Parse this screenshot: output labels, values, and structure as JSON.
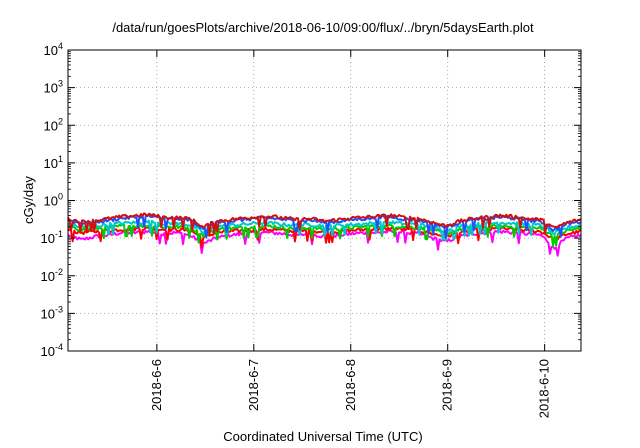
{
  "chart_data": {
    "type": "line",
    "title": "/data/run/goesPlots/archive/2018-06-10/09:00/flux/../bryn/5daysEarth.plot",
    "xlabel": "Coordinated Universal Time (UTC)",
    "ylabel": "cGy/day",
    "yscale": "log",
    "ylim": [
      0.0001,
      10000
    ],
    "xlim": [
      "2018-06-05 02:00",
      "2018-06-10 09:00"
    ],
    "y_ticks": [
      {
        "base": "10",
        "exp": "4"
      },
      {
        "base": "10",
        "exp": "3"
      },
      {
        "base": "10",
        "exp": "2"
      },
      {
        "base": "10",
        "exp": "1"
      },
      {
        "base": "10",
        "exp": "0"
      },
      {
        "base": "10",
        "exp": "-1"
      },
      {
        "base": "10",
        "exp": "-2"
      },
      {
        "base": "10",
        "exp": "-3"
      },
      {
        "base": "10",
        "exp": "-4"
      }
    ],
    "x_ticks": [
      "2018-6-6",
      "2018-6-7",
      "2018-6-8",
      "2018-6-9",
      "2018-6-10"
    ],
    "grid": true,
    "legend": "none",
    "series": [
      {
        "color": "#ff00ff",
        "level": 0.13,
        "values": [
          0.12,
          0.09,
          0.11,
          0.12,
          0.14,
          0.14,
          0.15,
          0.13,
          0.14,
          0.12,
          0.07,
          0.1,
          0.12,
          0.13,
          0.14,
          0.14,
          0.13,
          0.12,
          0.13,
          0.11,
          0.12,
          0.13,
          0.14,
          0.14,
          0.15,
          0.14,
          0.13,
          0.1,
          0.08,
          0.11,
          0.13,
          0.14,
          0.15,
          0.14,
          0.13,
          0.12,
          0.05,
          0.1,
          0.12
        ]
      },
      {
        "color": "#ff0000",
        "level": 0.16,
        "values": [
          0.16,
          0.14,
          0.15,
          0.16,
          0.17,
          0.18,
          0.18,
          0.17,
          0.17,
          0.16,
          0.1,
          0.14,
          0.15,
          0.16,
          0.17,
          0.17,
          0.16,
          0.15,
          0.16,
          0.14,
          0.15,
          0.16,
          0.17,
          0.17,
          0.18,
          0.17,
          0.16,
          0.13,
          0.11,
          0.14,
          0.16,
          0.17,
          0.18,
          0.17,
          0.16,
          0.15,
          0.09,
          0.13,
          0.15
        ]
      },
      {
        "color": "#00cc00",
        "level": 0.19,
        "values": [
          0.19,
          0.17,
          0.18,
          0.19,
          0.21,
          0.21,
          0.22,
          0.2,
          0.2,
          0.19,
          0.12,
          0.17,
          0.18,
          0.19,
          0.2,
          0.21,
          0.19,
          0.18,
          0.19,
          0.17,
          0.18,
          0.19,
          0.2,
          0.21,
          0.21,
          0.2,
          0.19,
          0.16,
          0.13,
          0.17,
          0.19,
          0.2,
          0.21,
          0.2,
          0.19,
          0.18,
          0.11,
          0.16,
          0.18
        ]
      },
      {
        "color": "#00c8c8",
        "level": 0.23,
        "values": [
          0.23,
          0.2,
          0.21,
          0.23,
          0.25,
          0.26,
          0.27,
          0.25,
          0.24,
          0.23,
          0.14,
          0.2,
          0.22,
          0.23,
          0.25,
          0.25,
          0.23,
          0.22,
          0.23,
          0.21,
          0.22,
          0.23,
          0.24,
          0.25,
          0.26,
          0.24,
          0.23,
          0.19,
          0.16,
          0.2,
          0.23,
          0.24,
          0.26,
          0.25,
          0.23,
          0.22,
          0.13,
          0.19,
          0.22
        ]
      },
      {
        "color": "#1e50ff",
        "level": 0.3,
        "values": [
          0.3,
          0.25,
          0.27,
          0.3,
          0.34,
          0.36,
          0.38,
          0.33,
          0.32,
          0.3,
          0.17,
          0.26,
          0.28,
          0.31,
          0.34,
          0.34,
          0.31,
          0.28,
          0.3,
          0.26,
          0.28,
          0.31,
          0.33,
          0.35,
          0.36,
          0.32,
          0.3,
          0.24,
          0.19,
          0.26,
          0.3,
          0.33,
          0.36,
          0.34,
          0.3,
          0.28,
          0.16,
          0.24,
          0.28
        ]
      },
      {
        "color": "#d01010",
        "level": 0.33,
        "values": [
          0.32,
          0.27,
          0.29,
          0.33,
          0.37,
          0.4,
          0.42,
          0.36,
          0.35,
          0.33,
          0.19,
          0.28,
          0.31,
          0.34,
          0.37,
          0.38,
          0.34,
          0.31,
          0.33,
          0.28,
          0.31,
          0.34,
          0.36,
          0.38,
          0.4,
          0.35,
          0.33,
          0.26,
          0.21,
          0.28,
          0.33,
          0.36,
          0.4,
          0.37,
          0.33,
          0.31,
          0.18,
          0.26,
          0.31
        ]
      }
    ]
  }
}
